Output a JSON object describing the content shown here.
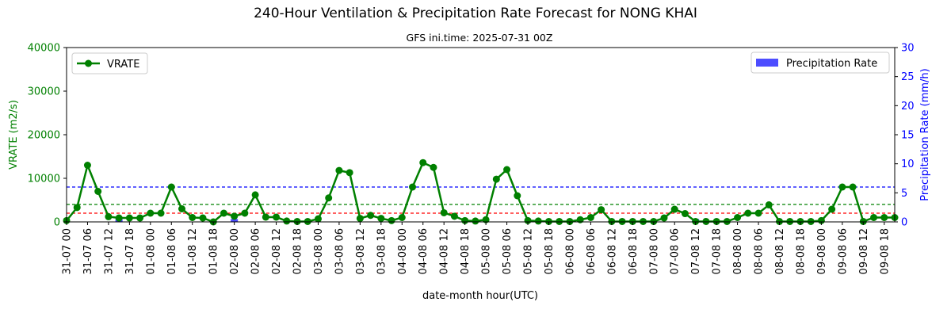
{
  "chart_data": {
    "type": "line",
    "title": "240-Hour Ventilation & Precipitation Rate Forecast for NONG KHAI",
    "subtitle": "GFS ini.time: 2025-07-31 00Z",
    "xlabel": "date-month hour(UTC)",
    "ylabel_left": "VRATE (m2/s)",
    "ylabel_right": "Precipitation Rate (mm/h)",
    "ylim_left": [
      0,
      40000
    ],
    "yticks_left": [
      "0",
      "10000",
      "20000",
      "30000",
      "40000"
    ],
    "ylim_right": [
      0,
      30
    ],
    "yticks_right": [
      "0",
      "5",
      "10",
      "15",
      "20",
      "25",
      "30"
    ],
    "x": [
      "31-07 00",
      "31-07 03",
      "31-07 06",
      "31-07 09",
      "31-07 12",
      "31-07 15",
      "31-07 18",
      "31-07 21",
      "01-08 00",
      "01-08 03",
      "01-08 06",
      "01-08 09",
      "01-08 12",
      "01-08 15",
      "01-08 18",
      "01-08 21",
      "02-08 00",
      "02-08 03",
      "02-08 06",
      "02-08 09",
      "02-08 12",
      "02-08 15",
      "02-08 18",
      "02-08 21",
      "03-08 00",
      "03-08 03",
      "03-08 06",
      "03-08 09",
      "03-08 12",
      "03-08 15",
      "03-08 18",
      "03-08 21",
      "04-08 00",
      "04-08 03",
      "04-08 06",
      "04-08 09",
      "04-08 12",
      "04-08 15",
      "04-08 18",
      "04-08 21",
      "05-08 00",
      "05-08 03",
      "05-08 06",
      "05-08 09",
      "05-08 12",
      "05-08 15",
      "05-08 18",
      "05-08 21",
      "06-08 00",
      "06-08 03",
      "06-08 06",
      "06-08 09",
      "06-08 12",
      "06-08 15",
      "06-08 18",
      "06-08 21",
      "07-08 00",
      "07-08 03",
      "07-08 06",
      "07-08 09",
      "07-08 12",
      "07-08 15",
      "07-08 18",
      "07-08 21",
      "08-08 00",
      "08-08 03",
      "08-08 06",
      "08-08 09",
      "08-08 12",
      "08-08 15",
      "08-08 18",
      "08-08 21",
      "09-08 00",
      "09-08 03",
      "09-08 06",
      "09-08 09",
      "09-08 12",
      "09-08 15",
      "09-08 18",
      "09-08 21"
    ],
    "x_tick_labels": [
      "31-07 00",
      "31-07 06",
      "31-07 12",
      "31-07 18",
      "01-08 00",
      "01-08 06",
      "01-08 12",
      "01-08 18",
      "02-08 00",
      "02-08 06",
      "02-08 12",
      "02-08 18",
      "03-08 00",
      "03-08 06",
      "03-08 12",
      "03-08 18",
      "04-08 00",
      "04-08 06",
      "04-08 12",
      "04-08 18",
      "05-08 00",
      "05-08 06",
      "05-08 12",
      "05-08 18",
      "06-08 00",
      "06-08 06",
      "06-08 12",
      "06-08 18",
      "07-08 00",
      "07-08 06",
      "07-08 12",
      "07-08 18",
      "08-08 00",
      "08-08 06",
      "08-08 12",
      "08-08 18",
      "09-08 00",
      "09-08 06",
      "09-08 12",
      "09-08 18"
    ],
    "series": [
      {
        "name": "VRATE",
        "axis": "left",
        "color": "#008000",
        "values": [
          300,
          3300,
          13000,
          7000,
          1200,
          900,
          900,
          900,
          2000,
          2000,
          8000,
          3000,
          1000,
          900,
          0,
          2000,
          1300,
          2000,
          6200,
          1100,
          1100,
          200,
          100,
          100,
          700,
          5500,
          11800,
          11300,
          800,
          1500,
          800,
          300,
          1000,
          8000,
          13600,
          12500,
          2100,
          1300,
          300,
          200,
          500,
          9800,
          12000,
          6000,
          300,
          200,
          100,
          100,
          100,
          500,
          1000,
          2800,
          100,
          100,
          100,
          100,
          100,
          900,
          2900,
          1900,
          100,
          100,
          100,
          100,
          1000,
          2000,
          2000,
          3900,
          100,
          100,
          100,
          100,
          300,
          2900,
          8000,
          8000,
          100,
          1000,
          1000,
          1000
        ]
      },
      {
        "name": "Precipitation Rate",
        "axis": "right",
        "type": "bar",
        "color": "#4d4dff",
        "values": [
          0,
          0,
          0,
          0,
          0,
          0.5,
          0,
          0,
          0,
          0,
          0,
          0,
          0,
          0,
          0,
          0,
          0.5,
          0,
          0,
          0,
          0,
          0,
          0,
          0,
          0,
          0,
          0,
          0,
          0,
          0,
          0,
          0,
          0,
          0,
          0,
          0,
          0,
          0,
          0,
          0,
          0,
          0,
          0,
          0,
          0,
          0,
          0,
          0,
          0.2,
          0,
          0,
          0,
          0,
          0.2,
          0,
          0.2,
          0,
          0,
          0,
          0,
          0.5,
          0,
          0.2,
          0,
          0,
          0,
          0,
          0,
          0,
          0,
          0,
          0,
          0,
          0,
          0,
          0,
          0,
          0,
          0,
          0
        ]
      }
    ],
    "reference_lines": [
      {
        "axis": "left",
        "value": 8000,
        "color": "#0000ff",
        "style": "dashed"
      },
      {
        "axis": "left",
        "value": 4000,
        "color": "#008000",
        "style": "dashed"
      },
      {
        "axis": "left",
        "value": 2000,
        "color": "#ff0000",
        "style": "dashed"
      }
    ],
    "legend_left": {
      "label": "VRATE",
      "placement": "top-left"
    },
    "legend_right": {
      "label": "Precipitation Rate",
      "placement": "top-right"
    },
    "grid": false
  }
}
